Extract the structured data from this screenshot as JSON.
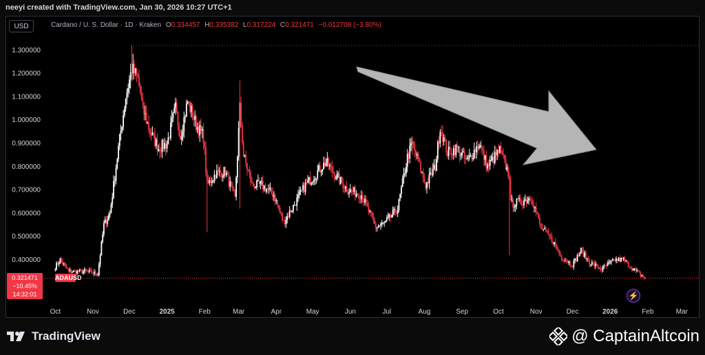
{
  "header": {
    "attribution": "neeyi created with TradingView.com, Jan 30, 2026 10:27 UTC+1",
    "currency_button": "USD",
    "instrument": "Cardano / U. S. Dollar · 1D · Kraken",
    "open_label": "O",
    "open_value": "0.334457",
    "high_label": "H",
    "high_value": "0.335382",
    "low_label": "L",
    "low_value": "0.317224",
    "close_label": "C",
    "close_value": "0.321471",
    "change": "−0.012708 (−3.80%)"
  },
  "price_tag": {
    "price": "0.321471",
    "change_pct": "−10.45%",
    "countdown": "14:32:01",
    "symbol": "ADAUSD"
  },
  "footer": {
    "brand": "TradingView",
    "watermark": "@ CaptainAltcoin"
  },
  "colors": {
    "up": "#ffffff",
    "down": "#f23645",
    "background": "#000000",
    "arrow": "#b5b5b5"
  },
  "chart_data": {
    "type": "candlestick",
    "title": "Cardano / U. S. Dollar · 1D · Kraken",
    "y_axis_side": "left",
    "ylim": [
      0.32,
      1.32
    ],
    "y_ticks": [
      0.4,
      0.5,
      0.6,
      0.7,
      0.8,
      0.9,
      1.0,
      1.1,
      1.2,
      1.3
    ],
    "y_tick_labels": [
      "0.400000",
      "0.500000",
      "0.600000",
      "0.700000",
      "0.800000",
      "0.900000",
      "1.000000",
      "1.100000",
      "1.200000",
      "1.300000"
    ],
    "x_ticks": [
      "Oct",
      "Nov",
      "Dec",
      "2025",
      "Feb",
      "Mar",
      "Apr",
      "May",
      "Jun",
      "Jul",
      "Aug",
      "Sep",
      "Oct",
      "Nov",
      "Dec",
      "2026",
      "Feb",
      "Mar"
    ],
    "bold_x_ticks": [
      "2025",
      "2026"
    ],
    "last_close": 0.321471,
    "price_path": [
      {
        "date": "2024-10-01",
        "close": 0.37
      },
      {
        "date": "2024-10-05",
        "close": 0.4
      },
      {
        "date": "2024-10-12",
        "close": 0.35
      },
      {
        "date": "2024-10-25",
        "close": 0.35
      },
      {
        "date": "2024-11-05",
        "close": 0.34
      },
      {
        "date": "2024-11-10",
        "close": 0.55
      },
      {
        "date": "2024-11-15",
        "close": 0.6
      },
      {
        "date": "2024-11-22",
        "close": 0.88
      },
      {
        "date": "2024-11-28",
        "close": 1.1
      },
      {
        "date": "2024-12-03",
        "close": 1.22
      },
      {
        "date": "2024-12-08",
        "close": 1.18
      },
      {
        "date": "2024-12-12",
        "close": 1.05
      },
      {
        "date": "2024-12-18",
        "close": 0.95
      },
      {
        "date": "2024-12-25",
        "close": 0.88
      },
      {
        "date": "2025-01-01",
        "close": 0.9
      },
      {
        "date": "2025-01-08",
        "close": 1.05
      },
      {
        "date": "2025-01-12",
        "close": 0.93
      },
      {
        "date": "2025-01-18",
        "close": 1.08
      },
      {
        "date": "2025-01-25",
        "close": 0.98
      },
      {
        "date": "2025-01-31",
        "close": 0.93
      },
      {
        "date": "2025-02-03",
        "close": 0.72
      },
      {
        "date": "2025-02-10",
        "close": 0.77
      },
      {
        "date": "2025-02-18",
        "close": 0.78
      },
      {
        "date": "2025-02-26",
        "close": 0.66
      },
      {
        "date": "2025-03-02",
        "close": 1.05
      },
      {
        "date": "2025-03-05",
        "close": 0.85
      },
      {
        "date": "2025-03-12",
        "close": 0.72
      },
      {
        "date": "2025-03-20",
        "close": 0.72
      },
      {
        "date": "2025-03-30",
        "close": 0.68
      },
      {
        "date": "2025-04-07",
        "close": 0.56
      },
      {
        "date": "2025-04-15",
        "close": 0.63
      },
      {
        "date": "2025-04-25",
        "close": 0.72
      },
      {
        "date": "2025-05-12",
        "close": 0.82
      },
      {
        "date": "2025-05-20",
        "close": 0.76
      },
      {
        "date": "2025-05-30",
        "close": 0.7
      },
      {
        "date": "2025-06-10",
        "close": 0.68
      },
      {
        "date": "2025-06-22",
        "close": 0.54
      },
      {
        "date": "2025-06-30",
        "close": 0.56
      },
      {
        "date": "2025-07-10",
        "close": 0.62
      },
      {
        "date": "2025-07-18",
        "close": 0.84
      },
      {
        "date": "2025-07-22",
        "close": 0.9
      },
      {
        "date": "2025-08-02",
        "close": 0.72
      },
      {
        "date": "2025-08-10",
        "close": 0.8
      },
      {
        "date": "2025-08-14",
        "close": 0.97
      },
      {
        "date": "2025-08-20",
        "close": 0.86
      },
      {
        "date": "2025-08-28",
        "close": 0.88
      },
      {
        "date": "2025-09-05",
        "close": 0.82
      },
      {
        "date": "2025-09-15",
        "close": 0.9
      },
      {
        "date": "2025-09-22",
        "close": 0.8
      },
      {
        "date": "2025-10-02",
        "close": 0.87
      },
      {
        "date": "2025-10-10",
        "close": 0.76
      },
      {
        "date": "2025-10-11",
        "close": 0.64
      },
      {
        "date": "2025-10-20",
        "close": 0.65
      },
      {
        "date": "2025-10-28",
        "close": 0.67
      },
      {
        "date": "2025-11-05",
        "close": 0.54
      },
      {
        "date": "2025-11-15",
        "close": 0.48
      },
      {
        "date": "2025-11-22",
        "close": 0.41
      },
      {
        "date": "2025-12-01",
        "close": 0.38
      },
      {
        "date": "2025-12-08",
        "close": 0.44
      },
      {
        "date": "2025-12-15",
        "close": 0.39
      },
      {
        "date": "2025-12-25",
        "close": 0.36
      },
      {
        "date": "2026-01-05",
        "close": 0.4
      },
      {
        "date": "2026-01-12",
        "close": 0.4
      },
      {
        "date": "2026-01-20",
        "close": 0.36
      },
      {
        "date": "2026-01-30",
        "close": 0.321471
      }
    ],
    "annotations": [
      "downward-arrow"
    ]
  }
}
